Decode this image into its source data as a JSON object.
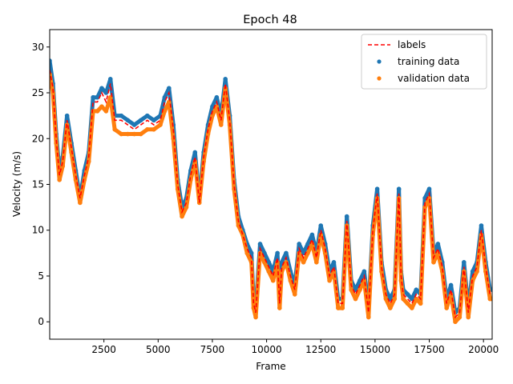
{
  "chart_data": {
    "type": "line",
    "title": "Epoch 48",
    "xlabel": "Frame",
    "ylabel": "Velocity (m/s)",
    "xlim": [
      0,
      20400
    ],
    "ylim": [
      -1.9,
      31.9
    ],
    "xticks": [
      2500,
      5000,
      7500,
      10000,
      12500,
      15000,
      17500,
      20000
    ],
    "xtick_labels": [
      "2500",
      "5000",
      "7500",
      "10000",
      "12500",
      "15000",
      "17500",
      "20000"
    ],
    "yticks": [
      0,
      5,
      10,
      15,
      20,
      25,
      30
    ],
    "ytick_labels": [
      "0",
      "5",
      "10",
      "15",
      "20",
      "25",
      "30"
    ],
    "legend_position": "top-right",
    "series": [
      {
        "name": "labels",
        "style": "dashed-line",
        "color": "#ff0000",
        "x": [
          0,
          150,
          300,
          450,
          600,
          800,
          1000,
          1200,
          1400,
          1600,
          1800,
          2000,
          2200,
          2400,
          2600,
          2800,
          3000,
          3300,
          3600,
          3900,
          4200,
          4500,
          4800,
          5100,
          5300,
          5500,
          5700,
          5900,
          6100,
          6300,
          6500,
          6700,
          6900,
          7100,
          7300,
          7500,
          7700,
          7900,
          8100,
          8300,
          8500,
          8700,
          8900,
          9100,
          9300,
          9400,
          9500,
          9700,
          9900,
          10100,
          10300,
          10500,
          10600,
          10700,
          10900,
          11100,
          11300,
          11500,
          11700,
          11900,
          12100,
          12300,
          12500,
          12700,
          12900,
          13100,
          13300,
          13500,
          13700,
          13900,
          14100,
          14300,
          14500,
          14700,
          14900,
          15100,
          15300,
          15500,
          15700,
          15900,
          16100,
          16200,
          16300,
          16500,
          16700,
          16900,
          17100,
          17300,
          17500,
          17700,
          17900,
          18100,
          18300,
          18500,
          18700,
          18900,
          19100,
          19300,
          19500,
          19700,
          19900,
          20100,
          20300,
          20400
        ],
        "y": [
          27.5,
          25.5,
          20,
          16,
          17.5,
          22,
          19,
          16,
          13.5,
          16,
          18,
          24,
          24,
          25,
          24,
          26,
          22,
          22,
          21.5,
          21,
          21.5,
          22,
          21.5,
          22,
          24,
          25,
          21,
          15,
          12,
          13,
          16,
          18,
          13,
          18,
          21,
          23,
          24,
          22,
          26,
          22,
          15,
          11,
          9.5,
          8,
          7,
          2,
          1,
          8,
          7,
          6,
          5,
          7,
          2,
          6,
          7,
          5,
          3.5,
          8,
          7,
          8,
          9,
          7,
          10,
          8,
          5,
          6,
          2,
          2,
          11,
          4,
          3,
          4,
          5,
          1,
          10,
          14,
          6,
          3,
          2,
          3,
          14,
          5,
          3,
          2.5,
          2,
          3,
          2.5,
          13,
          14,
          7,
          8,
          6,
          2,
          3.5,
          0.5,
          1,
          6,
          1,
          5,
          6,
          10,
          6,
          3,
          3
        ]
      },
      {
        "name": "training data",
        "style": "dots",
        "color": "#1f77b4",
        "x": [
          0,
          150,
          300,
          450,
          600,
          800,
          1000,
          1200,
          1400,
          1600,
          1800,
          2000,
          2200,
          2400,
          2600,
          2800,
          3000,
          3300,
          3600,
          3900,
          4200,
          4500,
          4800,
          5100,
          5300,
          5500,
          5700,
          5900,
          6100,
          6300,
          6500,
          6700,
          6900,
          7100,
          7300,
          7500,
          7700,
          7900,
          8100,
          8300,
          8500,
          8700,
          8900,
          9100,
          9300,
          9400,
          9500,
          9700,
          9900,
          10100,
          10300,
          10500,
          10600,
          10700,
          10900,
          11100,
          11300,
          11500,
          11700,
          11900,
          12100,
          12300,
          12500,
          12700,
          12900,
          13100,
          13300,
          13500,
          13700,
          13900,
          14100,
          14300,
          14500,
          14700,
          14900,
          15100,
          15300,
          15500,
          15700,
          15900,
          16100,
          16200,
          16300,
          16500,
          16700,
          16900,
          17100,
          17300,
          17500,
          17700,
          17900,
          18100,
          18300,
          18500,
          18700,
          18900,
          19100,
          19300,
          19500,
          19700,
          19900,
          20100,
          20300,
          20400
        ],
        "y": [
          28.5,
          26,
          20.5,
          16.5,
          18,
          22.5,
          19.5,
          16.5,
          13.5,
          16.5,
          18.5,
          24.5,
          24.5,
          25.5,
          25,
          26.5,
          22.5,
          22.5,
          22,
          21.5,
          22,
          22.5,
          22,
          22.5,
          24.5,
          25.5,
          21.5,
          15.5,
          12.5,
          13.5,
          16.5,
          18.5,
          13.5,
          18.5,
          21.5,
          23.5,
          24.5,
          22.5,
          26.5,
          22.5,
          15.5,
          11.5,
          10,
          8.5,
          7.5,
          2.5,
          1.5,
          8.5,
          7.5,
          6.5,
          5.5,
          7.5,
          2.5,
          6.5,
          7.5,
          5.5,
          4,
          8.5,
          7.5,
          8.5,
          9.5,
          7.5,
          10.5,
          8.5,
          5.5,
          6.5,
          2.5,
          2.5,
          11.5,
          4.5,
          3.5,
          4.5,
          5.5,
          1.5,
          10.5,
          14.5,
          6.5,
          3.5,
          2.5,
          3.5,
          14.5,
          5.5,
          3.5,
          3,
          2.5,
          3.5,
          3,
          13.5,
          14.5,
          7.5,
          8.5,
          6.5,
          2.5,
          4,
          1,
          1.5,
          6.5,
          1.5,
          5.5,
          6.5,
          10.5,
          6.5,
          3.5,
          3.5
        ]
      },
      {
        "name": "validation data",
        "style": "dots",
        "color": "#ff7f0e",
        "x": [
          0,
          150,
          300,
          450,
          600,
          800,
          1000,
          1200,
          1400,
          1600,
          1800,
          2000,
          2200,
          2400,
          2600,
          2800,
          3000,
          3300,
          3600,
          3900,
          4200,
          4500,
          4800,
          5100,
          5300,
          5500,
          5700,
          5900,
          6100,
          6300,
          6500,
          6700,
          6900,
          7100,
          7300,
          7500,
          7700,
          7900,
          8100,
          8300,
          8500,
          8700,
          8900,
          9100,
          9300,
          9400,
          9500,
          9700,
          9900,
          10100,
          10300,
          10500,
          10600,
          10700,
          10900,
          11100,
          11300,
          11500,
          11700,
          11900,
          12100,
          12300,
          12500,
          12700,
          12900,
          13100,
          13300,
          13500,
          13700,
          13900,
          14100,
          14300,
          14500,
          14700,
          14900,
          15100,
          15300,
          15500,
          15700,
          15900,
          16100,
          16200,
          16300,
          16500,
          16700,
          16900,
          17100,
          17300,
          17500,
          17700,
          17900,
          18100,
          18300,
          18500,
          18700,
          18900,
          19100,
          19300,
          19500,
          19700,
          19900,
          20100,
          20300,
          20400
        ],
        "y": [
          27,
          25,
          19.5,
          15.5,
          17,
          21.5,
          18.5,
          15.5,
          13,
          15.5,
          17.5,
          23,
          23,
          23.5,
          23,
          24.5,
          21,
          20.5,
          20.5,
          20.5,
          20.5,
          21,
          21,
          21.5,
          23,
          24,
          20,
          14.5,
          11.5,
          12.5,
          15.5,
          17.5,
          13,
          17.5,
          20.5,
          22.5,
          23.5,
          21.5,
          25.5,
          21.5,
          14.5,
          10.5,
          9.5,
          7.5,
          6.5,
          1.5,
          0.5,
          7.5,
          6.5,
          5.5,
          4.5,
          6.5,
          1.5,
          5.5,
          6.5,
          4.5,
          3,
          7.5,
          6.5,
          7.5,
          8.5,
          6.5,
          9.5,
          7.5,
          4.5,
          5.5,
          1.5,
          1.5,
          10.5,
          3.5,
          2.5,
          3.5,
          4.5,
          0.5,
          9.5,
          13.5,
          5.5,
          2.5,
          1.5,
          2.5,
          13.5,
          4.5,
          2.5,
          2,
          1.5,
          2.5,
          2,
          12.5,
          13.5,
          6.5,
          7.5,
          5.5,
          1.5,
          3,
          0,
          0.5,
          5.5,
          0.5,
          4.5,
          5.5,
          9.5,
          5.5,
          2.5,
          2.5
        ]
      }
    ]
  }
}
